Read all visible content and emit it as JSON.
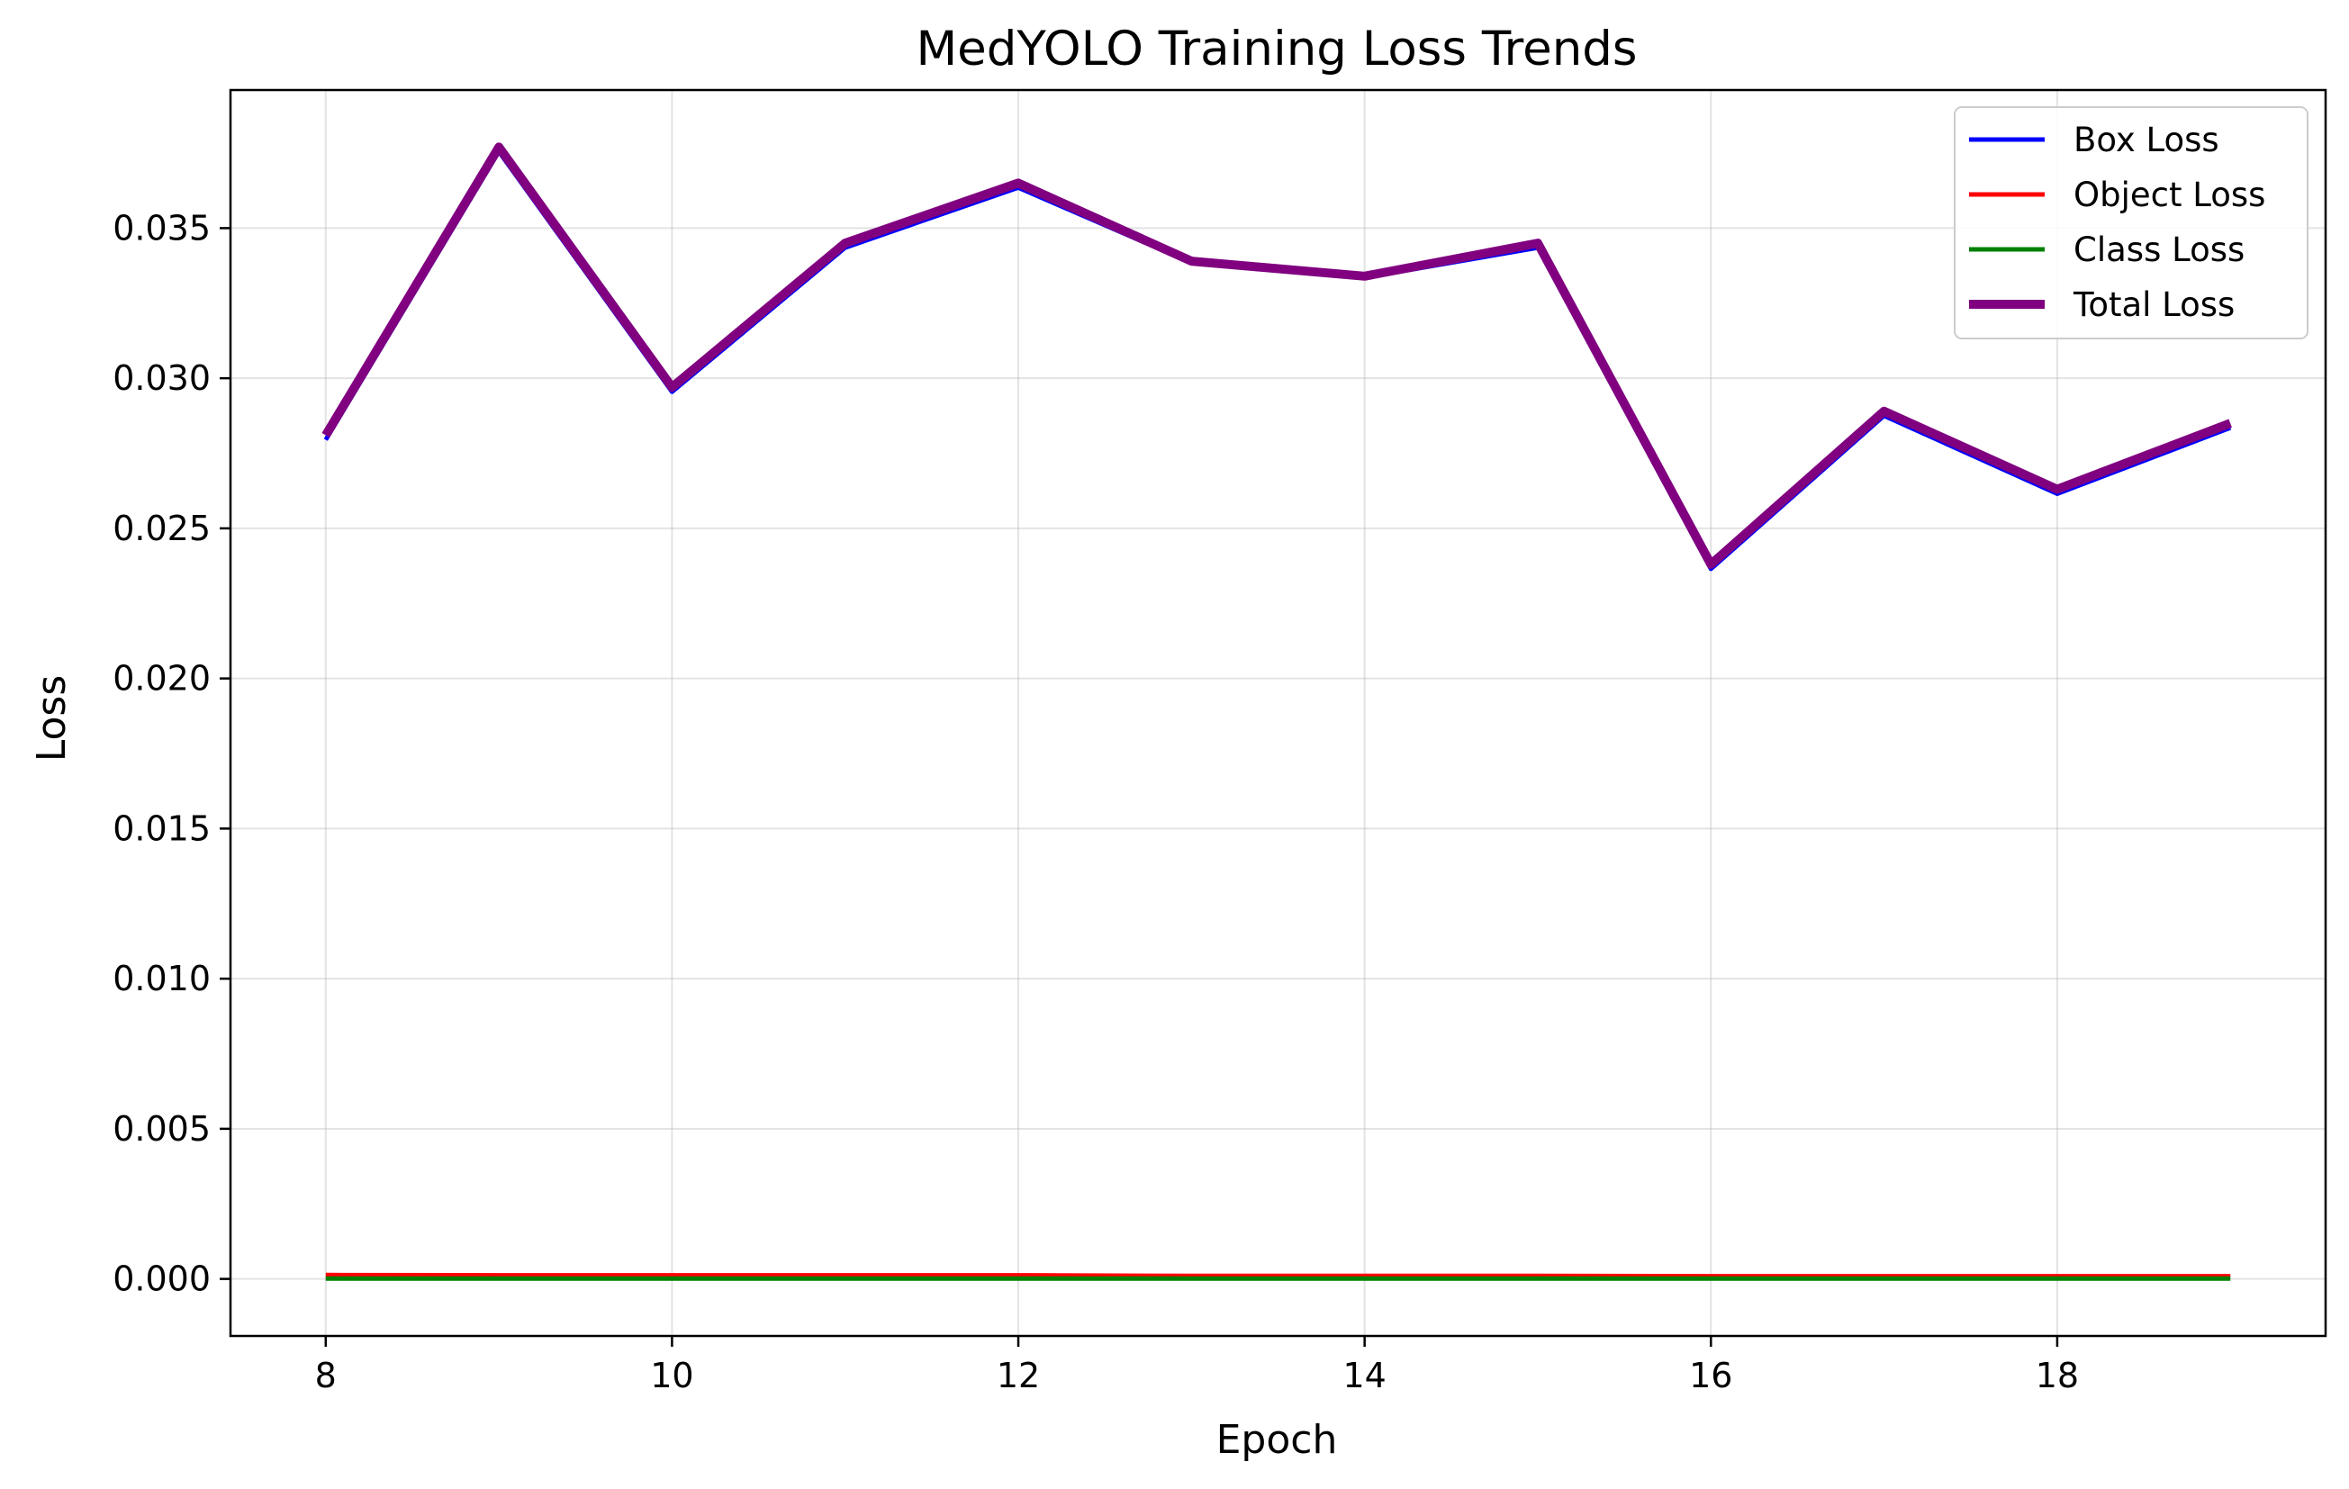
{
  "chart_data": {
    "type": "line",
    "title": "MedYOLO Training Loss Trends",
    "xlabel": "Epoch",
    "ylabel": "Loss",
    "x": [
      8,
      9,
      10,
      11,
      12,
      13,
      14,
      15,
      16,
      17,
      18,
      19
    ],
    "xlim": [
      7.45,
      19.55
    ],
    "ylim": [
      -0.0019,
      0.0396
    ],
    "xticks": [
      8,
      10,
      12,
      14,
      16,
      18
    ],
    "xtick_labels": [
      "8",
      "10",
      "12",
      "14",
      "16",
      "18"
    ],
    "yticks": [
      0.0,
      0.005,
      0.01,
      0.015,
      0.02,
      0.025,
      0.03,
      0.035
    ],
    "ytick_labels": [
      "0.000",
      "0.005",
      "0.010",
      "0.015",
      "0.020",
      "0.025",
      "0.030",
      "0.035"
    ],
    "grid": true,
    "legend_position": "top-right",
    "series": [
      {
        "name": "Box Loss",
        "color": "#0000ff",
        "values": [
          0.02795,
          0.03755,
          0.02955,
          0.03435,
          0.03635,
          0.03385,
          0.03335,
          0.03435,
          0.02365,
          0.02875,
          0.02615,
          0.02835
        ]
      },
      {
        "name": "Object Loss",
        "color": "#ff0000",
        "values": [
          0.00013,
          0.00012,
          0.00012,
          0.00012,
          0.00012,
          0.0001,
          0.0001,
          0.0001,
          9e-05,
          9e-05,
          9e-05,
          9e-05
        ]
      },
      {
        "name": "Class Loss",
        "color": "#008000",
        "values": [
          1e-05,
          1e-05,
          1e-05,
          1e-05,
          1e-05,
          1e-05,
          1e-05,
          1e-05,
          1e-05,
          1e-05,
          1e-05,
          1e-05
        ]
      },
      {
        "name": "Total Loss",
        "color": "#800080",
        "values": [
          0.0281,
          0.0377,
          0.0297,
          0.0345,
          0.0365,
          0.0339,
          0.0334,
          0.0345,
          0.0238,
          0.0289,
          0.0263,
          0.0285
        ]
      }
    ]
  }
}
